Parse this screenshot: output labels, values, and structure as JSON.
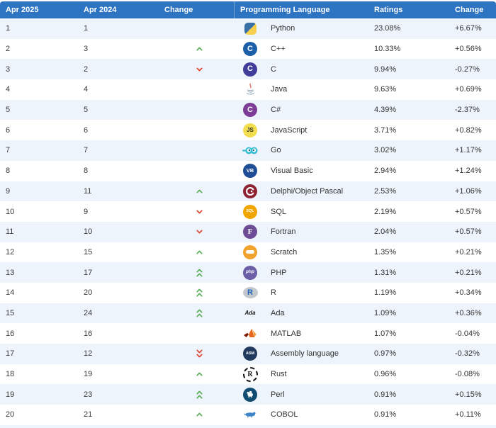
{
  "colors": {
    "header_bg": "#2d74c2",
    "row_bg": "#ffffff",
    "row_alt_bg": "#eef4fb",
    "text": "#333333",
    "up_arrow": "#5aad5a",
    "down_arrow": "#e0432d"
  },
  "table": {
    "headers": [
      "Apr 2025",
      "Apr 2024",
      "Change",
      "Programming Language",
      "Ratings",
      "Change"
    ],
    "rows": [
      {
        "r25": "1",
        "r24": "1",
        "chg": "none",
        "lang": "Python",
        "rating": "23.08%",
        "delta": "+6.67%",
        "icon": {
          "name": "python-icon",
          "kind": "python",
          "c1": "#3871a8",
          "c2": "#f7d14d"
        }
      },
      {
        "r25": "2",
        "r24": "3",
        "chg": "up",
        "lang": "C++",
        "rating": "10.33%",
        "delta": "+0.56%",
        "icon": {
          "name": "cpp-icon",
          "kind": "circle",
          "bg": "#1a5fa8",
          "fg": "#ffffff",
          "text": "C",
          "fs": 11
        }
      },
      {
        "r25": "3",
        "r24": "2",
        "chg": "down",
        "lang": "C",
        "rating": "9.94%",
        "delta": "-0.27%",
        "icon": {
          "name": "c-icon",
          "kind": "circle",
          "bg": "#413d9b",
          "fg": "#ffffff",
          "text": "C",
          "fs": 11
        }
      },
      {
        "r25": "4",
        "r24": "4",
        "chg": "none",
        "lang": "Java",
        "rating": "9.63%",
        "delta": "+0.69%",
        "icon": {
          "name": "java-icon",
          "kind": "java",
          "c1": "#e2574c",
          "c2": "#8fa3b5"
        }
      },
      {
        "r25": "5",
        "r24": "5",
        "chg": "none",
        "lang": "C#",
        "rating": "4.39%",
        "delta": "-2.37%",
        "icon": {
          "name": "csharp-icon",
          "kind": "circle",
          "bg": "#7d3d96",
          "fg": "#ffffff",
          "text": "C",
          "fs": 11
        }
      },
      {
        "r25": "6",
        "r24": "6",
        "chg": "none",
        "lang": "JavaScript",
        "rating": "3.71%",
        "delta": "+0.82%",
        "icon": {
          "name": "javascript-icon",
          "kind": "circle",
          "bg": "#f2dd4e",
          "fg": "#2b2b2b",
          "text": "JS",
          "fs": 8
        }
      },
      {
        "r25": "7",
        "r24": "7",
        "chg": "none",
        "lang": "Go",
        "rating": "3.02%",
        "delta": "+1.17%",
        "icon": {
          "name": "go-icon",
          "kind": "go",
          "c1": "#35bdd3",
          "c2": "#0f6f80"
        }
      },
      {
        "r25": "8",
        "r24": "8",
        "chg": "none",
        "lang": "Visual Basic",
        "rating": "2.94%",
        "delta": "+1.24%",
        "icon": {
          "name": "visual-basic-icon",
          "kind": "circle",
          "bg": "#1f4e96",
          "fg": "#ffffff",
          "text": "VB",
          "fs": 7.5
        }
      },
      {
        "r25": "9",
        "r24": "11",
        "chg": "up",
        "lang": "Delphi/Object Pascal",
        "rating": "2.53%",
        "delta": "+1.06%",
        "icon": {
          "name": "delphi-icon",
          "kind": "delphi",
          "bg": "#8e2333"
        }
      },
      {
        "r25": "10",
        "r24": "9",
        "chg": "down",
        "lang": "SQL",
        "rating": "2.19%",
        "delta": "+0.57%",
        "icon": {
          "name": "sql-icon",
          "kind": "circle",
          "bg": "#f0a500",
          "fg": "#ffffff",
          "text": "SQL",
          "fs": 5.5
        }
      },
      {
        "r25": "11",
        "r24": "10",
        "chg": "down",
        "lang": "Fortran",
        "rating": "2.04%",
        "delta": "+0.57%",
        "icon": {
          "name": "fortran-icon",
          "kind": "circle",
          "bg": "#6f4d96",
          "fg": "#ffffff",
          "text": "F",
          "fs": 11,
          "serif": true
        }
      },
      {
        "r25": "12",
        "r24": "15",
        "chg": "up",
        "lang": "Scratch",
        "rating": "1.35%",
        "delta": "+0.21%",
        "icon": {
          "name": "scratch-icon",
          "kind": "scratch",
          "bg": "#f0a32e"
        }
      },
      {
        "r25": "13",
        "r24": "17",
        "chg": "up2",
        "lang": "PHP",
        "rating": "1.31%",
        "delta": "+0.21%",
        "icon": {
          "name": "php-icon",
          "kind": "circle",
          "bg": "#6c5fa7",
          "fg": "#ffffff",
          "text": "php",
          "fs": 6.5,
          "italic": true
        }
      },
      {
        "r25": "14",
        "r24": "20",
        "chg": "up2",
        "lang": "R",
        "rating": "1.19%",
        "delta": "+0.34%",
        "icon": {
          "name": "r-icon",
          "kind": "r",
          "bg": "#c4c8cc",
          "fg": "#1f65b7",
          "text": "R"
        }
      },
      {
        "r25": "15",
        "r24": "24",
        "chg": "up2",
        "lang": "Ada",
        "rating": "1.09%",
        "delta": "+0.36%",
        "icon": {
          "name": "ada-icon",
          "kind": "text",
          "fg": "#1a1a1a",
          "text": "Ada",
          "fs": 8
        }
      },
      {
        "r25": "16",
        "r24": "16",
        "chg": "none",
        "lang": "MATLAB",
        "rating": "1.07%",
        "delta": "-0.04%",
        "icon": {
          "name": "matlab-icon",
          "kind": "matlab",
          "c1": "#7c1d05",
          "c2": "#e8661b",
          "c3": "#f29e38"
        }
      },
      {
        "r25": "17",
        "r24": "12",
        "chg": "down2",
        "lang": "Assembly language",
        "rating": "0.97%",
        "delta": "-0.32%",
        "icon": {
          "name": "assembly-icon",
          "kind": "circle",
          "bg": "#223a5e",
          "fg": "#ffffff",
          "text": "ASM",
          "fs": 5.5
        }
      },
      {
        "r25": "18",
        "r24": "19",
        "chg": "up",
        "lang": "Rust",
        "rating": "0.96%",
        "delta": "-0.08%",
        "icon": {
          "name": "rust-icon",
          "kind": "rust",
          "fg": "#111111",
          "text": "R"
        }
      },
      {
        "r25": "19",
        "r24": "23",
        "chg": "up2",
        "lang": "Perl",
        "rating": "0.91%",
        "delta": "+0.15%",
        "icon": {
          "name": "perl-icon",
          "kind": "perl",
          "bg": "#114d73"
        }
      },
      {
        "r25": "20",
        "r24": "21",
        "chg": "up",
        "lang": "COBOL",
        "rating": "0.91%",
        "delta": "+0.11%",
        "icon": {
          "name": "cobol-icon",
          "kind": "cobol",
          "c1": "#3d85c6"
        }
      }
    ]
  }
}
